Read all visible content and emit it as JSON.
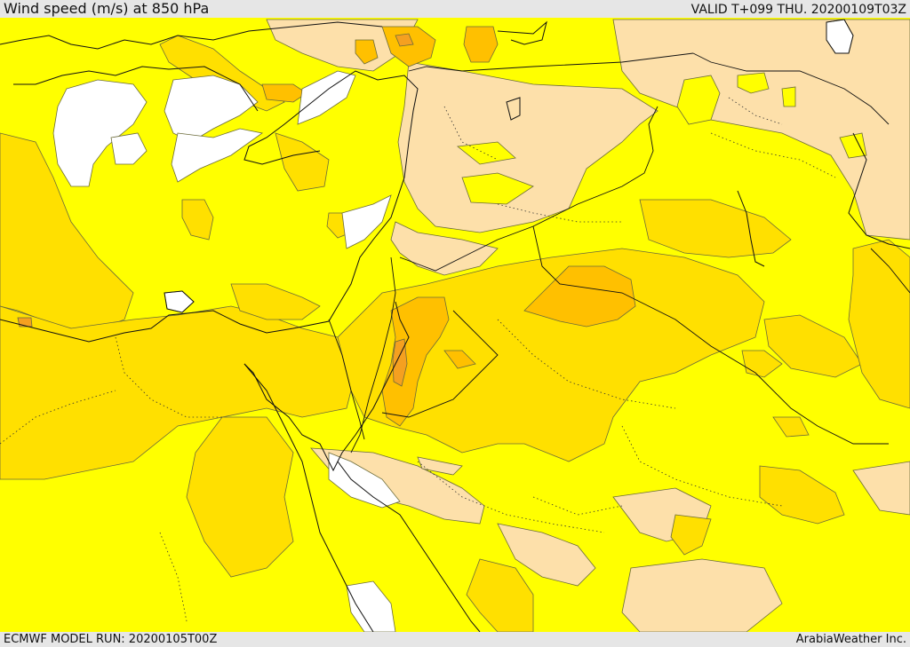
{
  "header": {
    "title": "Wind speed (m/s) at 850 hPa",
    "valid": "VALID T+099 THU. 20200109T03Z"
  },
  "footer": {
    "model_run": "ECMWF MODEL RUN: 20200105T00Z",
    "credit": "ArabiaWeather Inc."
  },
  "map": {
    "colors": {
      "calm": "#ffffff",
      "tan": "#fde0aa",
      "yellow": "#ffff00",
      "gold": "#ffe000",
      "orange": "#ffc000",
      "dark_orange": "#f5a020"
    }
  }
}
